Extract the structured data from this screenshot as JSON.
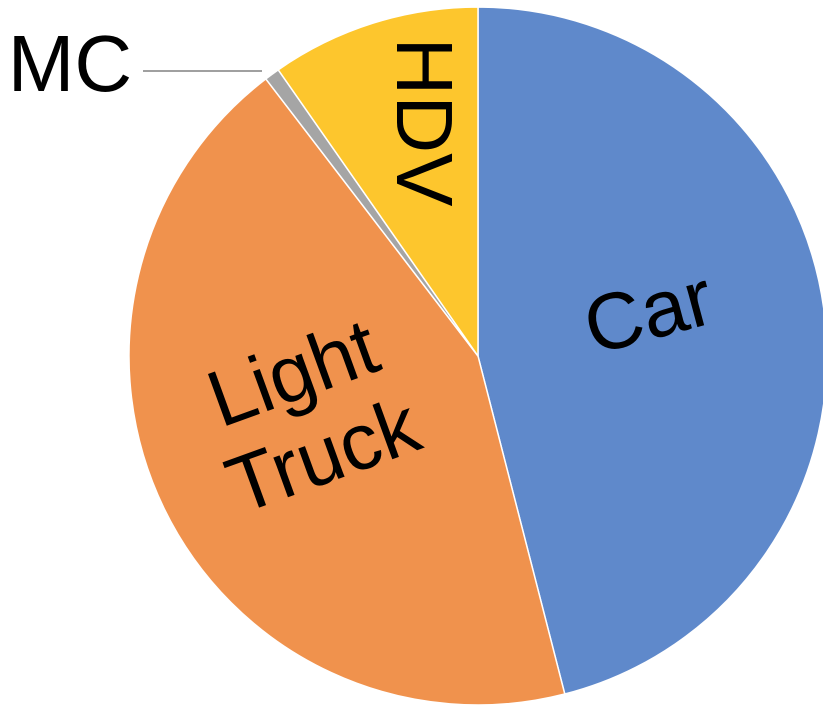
{
  "chart_data": {
    "type": "pie",
    "categories": [
      "Car",
      "Light Truck",
      "MC",
      "HDV"
    ],
    "values": [
      46,
      43.6,
      0.7,
      9.7
    ],
    "colors": [
      "#5f89cb",
      "#f0924d",
      "#a5a5a5",
      "#fdc62d"
    ]
  }
}
